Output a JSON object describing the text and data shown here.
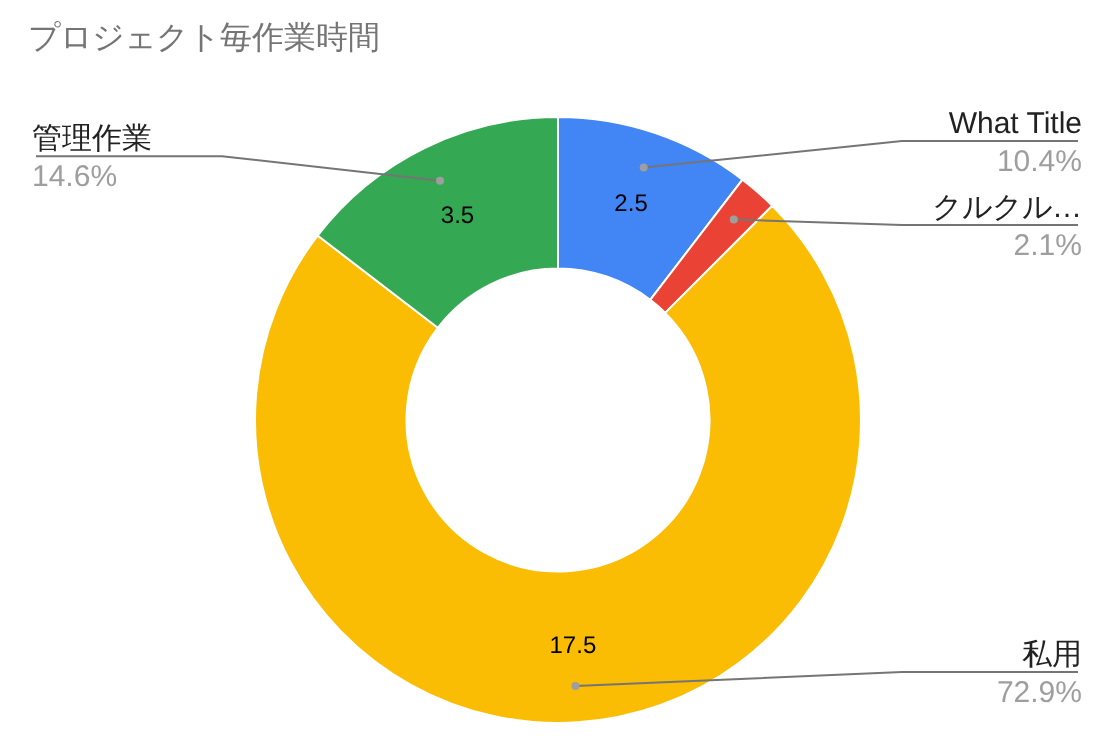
{
  "chart_data": {
    "type": "donut",
    "title": "プロジェクト毎作業時間",
    "categories": [
      "What Title",
      "クルクル…",
      "私用",
      "管理作業"
    ],
    "values": [
      2.5,
      0.5,
      17.5,
      3.5
    ],
    "value_labels": [
      "2.5",
      null,
      "17.5",
      "3.5"
    ],
    "colors": [
      "#4285f4",
      "#ea4335",
      "#fbbc04",
      "#34a853"
    ],
    "annotations": [
      "10.4%",
      "2.1%",
      "72.9%",
      "14.6%"
    ],
    "legend": false
  }
}
